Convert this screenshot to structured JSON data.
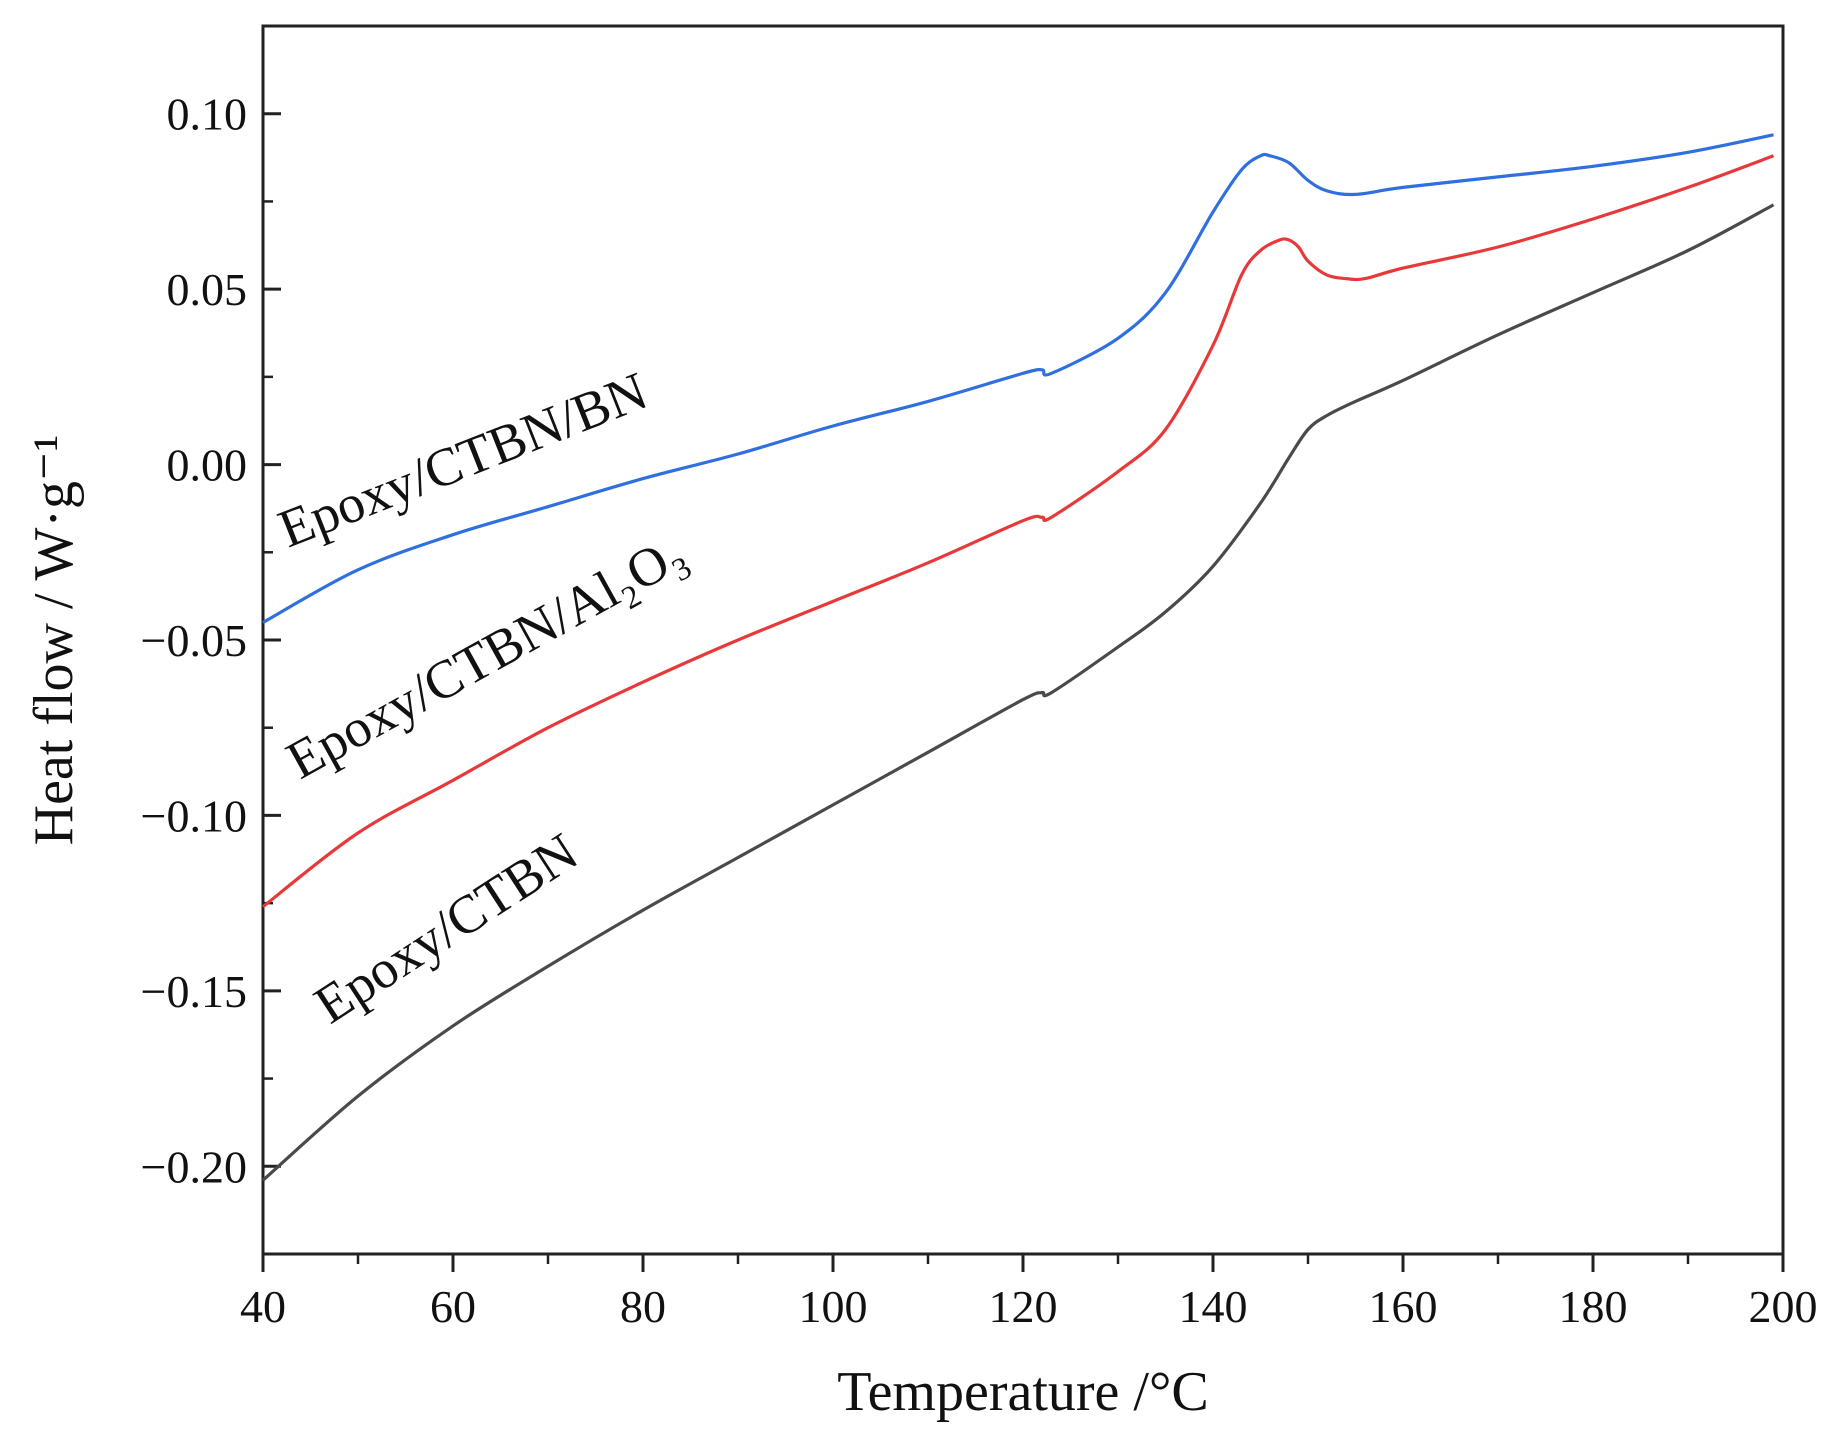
{
  "chart_data": {
    "type": "line",
    "xlabel": "Temperature /°C",
    "ylabel": "Heat flow / W·g⁻¹",
    "xlim": [
      40,
      200
    ],
    "ylim": [
      -0.225,
      0.125
    ],
    "x_ticks": [
      40,
      60,
      80,
      100,
      120,
      140,
      160,
      180,
      200
    ],
    "x_tick_labels": [
      "40",
      "60",
      "80",
      "100",
      "120",
      "140",
      "160",
      "180",
      "200"
    ],
    "y_ticks": [
      0.1,
      0.05,
      0.0,
      -0.05,
      -0.1,
      -0.15,
      -0.2
    ],
    "y_tick_labels": [
      "0.10",
      "0.05",
      "0.00",
      "−0.05",
      "−0.10",
      "−0.15",
      "−0.20"
    ],
    "grid": false,
    "legend": "none",
    "series": [
      {
        "name": "Epoxy/CTBN/BN",
        "color": "#2f6fe0",
        "x": [
          40,
          50,
          60,
          70,
          80,
          90,
          100,
          110,
          120,
          122,
          123,
          130,
          135,
          140,
          143,
          145,
          146,
          148,
          150,
          152,
          155,
          160,
          170,
          180,
          190,
          199
        ],
        "y": [
          -0.045,
          -0.03,
          -0.02,
          -0.012,
          -0.004,
          0.003,
          0.011,
          0.018,
          0.026,
          0.027,
          0.026,
          0.036,
          0.049,
          0.072,
          0.084,
          0.088,
          0.088,
          0.086,
          0.081,
          0.078,
          0.077,
          0.079,
          0.082,
          0.085,
          0.089,
          0.094
        ]
      },
      {
        "name": "Epoxy/CTBN/Al₂O₃",
        "color": "#e8393a",
        "x": [
          40,
          50,
          60,
          70,
          80,
          90,
          100,
          110,
          120,
          122,
          123,
          130,
          135,
          140,
          143,
          145,
          147,
          148,
          149,
          150,
          152,
          154,
          156,
          160,
          170,
          180,
          190,
          199
        ],
        "y": [
          -0.126,
          -0.105,
          -0.09,
          -0.075,
          -0.062,
          -0.05,
          -0.039,
          -0.028,
          -0.016,
          -0.015,
          -0.015,
          -0.002,
          0.01,
          0.034,
          0.054,
          0.061,
          0.064,
          0.064,
          0.062,
          0.058,
          0.054,
          0.053,
          0.053,
          0.056,
          0.062,
          0.07,
          0.079,
          0.088
        ]
      },
      {
        "name": "Epoxy/CTBN",
        "color": "#4a4a4a",
        "x": [
          40,
          50,
          60,
          70,
          80,
          90,
          100,
          110,
          120,
          122,
          123,
          130,
          135,
          140,
          145,
          148,
          150,
          152,
          155,
          160,
          170,
          180,
          190,
          199
        ],
        "y": [
          -0.204,
          -0.18,
          -0.16,
          -0.143,
          -0.127,
          -0.112,
          -0.097,
          -0.082,
          -0.067,
          -0.065,
          -0.065,
          -0.052,
          -0.042,
          -0.029,
          -0.011,
          0.002,
          0.01,
          0.014,
          0.018,
          0.024,
          0.037,
          0.049,
          0.061,
          0.074
        ]
      }
    ]
  }
}
